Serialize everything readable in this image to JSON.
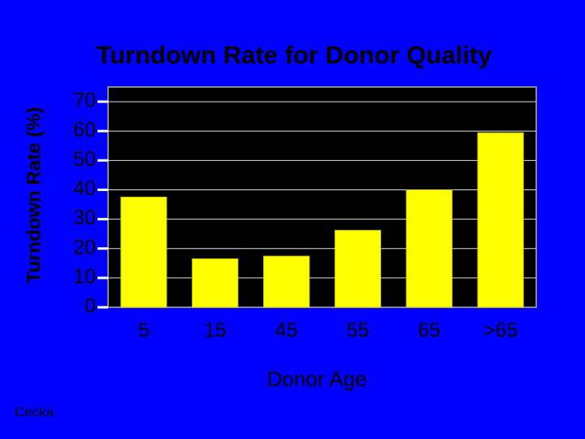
{
  "chart_data": {
    "type": "bar",
    "title": "Turndown Rate for Donor Quality",
    "x_label": "Donor Age",
    "y_label": "Turndown Rate (%)",
    "source": "Cecka",
    "categories": [
      "5",
      "15",
      "45",
      "55",
      "65",
      ">65"
    ],
    "values": [
      37.5,
      16.5,
      17.4,
      26.2,
      40,
      59.4
    ],
    "color": "#ffff00",
    "ylim": [
      0,
      75
    ],
    "yticks": [
      0,
      10,
      20,
      30,
      40,
      50,
      60,
      70
    ],
    "grid": true
  }
}
